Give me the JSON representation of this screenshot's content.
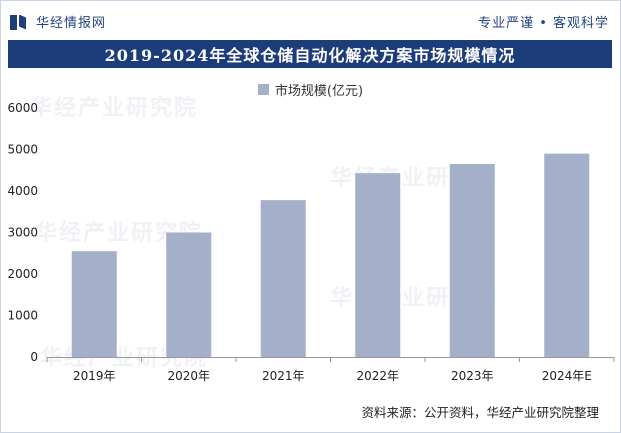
{
  "header": {
    "brand": "华经情报网",
    "tagline": "专业严谨 • 客观科学"
  },
  "title": "2019-2024年全球仓储自动化解决方案市场规模情况",
  "source": "资料来源：公开资料，华经产业研究院整理",
  "watermark": "华经产业研究院",
  "colors": {
    "bar": "#a4b0c9",
    "title_bg": "#1d3c7a",
    "brand": "#23447f"
  },
  "chart_data": {
    "type": "bar",
    "categories": [
      "2019年",
      "2020年",
      "2021年",
      "2022年",
      "2023年",
      "2024年E"
    ],
    "series": [
      {
        "name": "市场规模(亿元)",
        "values": [
          2550,
          3000,
          3780,
          4430,
          4650,
          4900
        ]
      }
    ],
    "ylim": [
      0,
      6000
    ],
    "yticks": [
      "0",
      "1000",
      "2000",
      "3000",
      "4000",
      "5000",
      "6000"
    ],
    "grid": false,
    "legend": "top-center"
  }
}
